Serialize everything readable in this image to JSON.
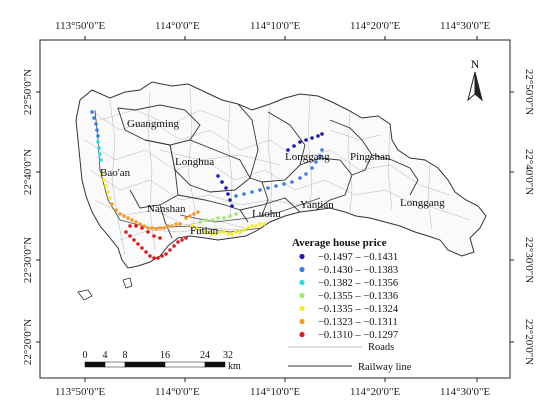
{
  "map": {
    "graticule": {
      "lon_labels": [
        "113°50'0\"E",
        "114°0'0\"E",
        "114°10'0\"E",
        "114°20'0\"E",
        "114°30'0\"E"
      ],
      "lat_labels": [
        "22°50'0\"N",
        "22°40'0\"N",
        "22°30'0\"N",
        "22°20'0\"N"
      ]
    },
    "north_arrow": {
      "label": "N"
    },
    "districts": [
      {
        "id": "guangming",
        "name": "Guangming"
      },
      {
        "id": "baoan",
        "name": "Bao'an"
      },
      {
        "id": "longhua",
        "name": "Longhua"
      },
      {
        "id": "longgang-1",
        "name": "Longgang"
      },
      {
        "id": "pingshan",
        "name": "Pingshan"
      },
      {
        "id": "nanshan",
        "name": "Nanshan"
      },
      {
        "id": "luohu",
        "name": "Luohu"
      },
      {
        "id": "yantian",
        "name": "Yantian"
      },
      {
        "id": "longgang-2",
        "name": "Longgang"
      },
      {
        "id": "futian",
        "name": "Futian"
      }
    ],
    "legend": {
      "title": "Average house price",
      "classes": [
        {
          "range": "−0.1497 – −0.1431",
          "color": "#1a1aa8"
        },
        {
          "range": "−0.1430 – −0.1383",
          "color": "#3b7fd9"
        },
        {
          "range": "−0.1382 – −0.1356",
          "color": "#2fd8e8"
        },
        {
          "range": "−0.1355 – −0.1336",
          "color": "#a6e86a"
        },
        {
          "range": "−0.1335 – −0.1324",
          "color": "#f2ee2c"
        },
        {
          "range": "−0.1323 – −0.1311",
          "color": "#f39a2a"
        },
        {
          "range": "−0.1310 – −0.1297",
          "color": "#d81e1e"
        }
      ],
      "roads_label": "Roads",
      "railway_label": "Railway line"
    },
    "scale_bar": {
      "ticks": [
        "0",
        "4",
        "8",
        "16",
        "24",
        "32"
      ],
      "unit": "km"
    }
  }
}
